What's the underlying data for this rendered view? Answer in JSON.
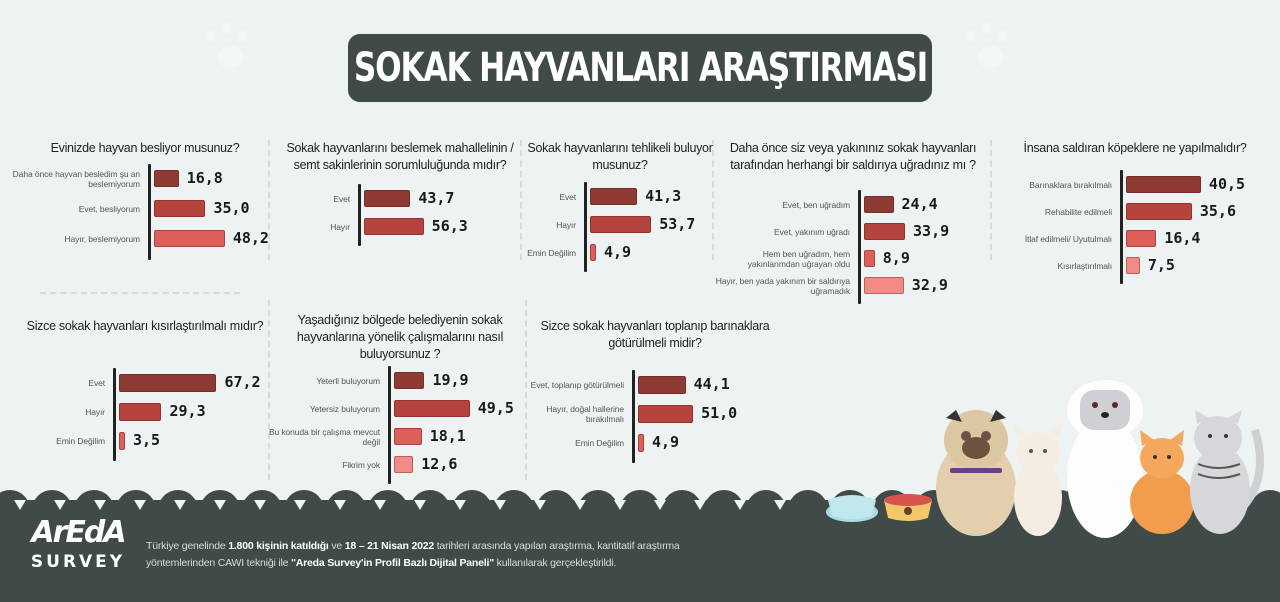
{
  "header": {
    "title": "SOKAK HAYVANLARI ARAŞTIRMASI"
  },
  "colors": {
    "background": "#edf3f2",
    "dark_panel": "#3f4a49",
    "bar_dark": "#8e3b33",
    "bar_mid": "#b5443e",
    "bar_light": "#dc5f5a",
    "bar_lightest": "#f28a86"
  },
  "chart_data": [
    {
      "type": "bar",
      "orientation": "horizontal",
      "title": "Evinizde hayvan besliyor musunuz?",
      "categories": [
        "Daha önce hayvan besledim şu an beslemiyorum",
        "Evet, besliyorum",
        "Hayır, beslemiyorum"
      ],
      "values": [
        16.8,
        35.0,
        48.2
      ],
      "value_labels": [
        "16,8",
        "35,0",
        "48,2"
      ],
      "unit": "%"
    },
    {
      "type": "bar",
      "orientation": "horizontal",
      "title": "Sokak hayvanlarını beslemek mahallelinin / semt sakinlerinin sorumluluğunda mıdır?",
      "categories": [
        "Evet",
        "Hayır"
      ],
      "values": [
        43.7,
        56.3
      ],
      "value_labels": [
        "43,7",
        "56,3"
      ],
      "unit": "%"
    },
    {
      "type": "bar",
      "orientation": "horizontal",
      "title": "Sokak hayvanlarını tehlikeli buluyor musunuz?",
      "categories": [
        "Evet",
        "Hayır",
        "Emin Değilim"
      ],
      "values": [
        41.3,
        53.7,
        4.9
      ],
      "value_labels": [
        "41,3",
        "53,7",
        "4,9"
      ],
      "unit": "%"
    },
    {
      "type": "bar",
      "orientation": "horizontal",
      "title": "Daha önce siz veya yakınınız sokak hayvanları tarafından herhangi bir saldırıya uğradınız mı ?",
      "categories": [
        "Evet, ben uğradım",
        "Evet, yakınım uğradı",
        "Hem ben uğradım, hem yakınlarımdan uğrayan oldu",
        "Hayır, ben yada yakınım bir saldırıya uğramadık"
      ],
      "values": [
        24.4,
        33.9,
        8.9,
        32.9
      ],
      "value_labels": [
        "24,4",
        "33,9",
        "8,9",
        "32,9"
      ],
      "unit": "%"
    },
    {
      "type": "bar",
      "orientation": "horizontal",
      "title": "İnsana saldıran köpeklere ne yapılmalıdır?",
      "categories": [
        "Barınaklara bırakılmalı",
        "Rehabilite edilmeli",
        "İtlaf edilmeli/ Uyutulmalı",
        "Kısırlaştırılmalı"
      ],
      "values": [
        40.5,
        35.6,
        16.4,
        7.5
      ],
      "value_labels": [
        "40,5",
        "35,6",
        "16,4",
        "7,5"
      ],
      "unit": "%"
    },
    {
      "type": "bar",
      "orientation": "horizontal",
      "title": "Sizce sokak hayvanları kısırlaştırılmalı mıdır?",
      "categories": [
        "Evet",
        "Hayır",
        "Emin Değilim"
      ],
      "values": [
        67.2,
        29.3,
        3.5
      ],
      "value_labels": [
        "67,2",
        "29,3",
        "3,5"
      ],
      "unit": "%"
    },
    {
      "type": "bar",
      "orientation": "horizontal",
      "title": "Yaşadığınız bölgede belediyenin sokak hayvanlarına yönelik çalışmalarını nasıl buluyorsunuz ?",
      "categories": [
        "Yeterli buluyorum",
        "Yetersiz buluyorum",
        "Bu konuda bir çalışma mevcut değil",
        "Fikrim yok"
      ],
      "values": [
        19.9,
        49.5,
        18.1,
        12.6
      ],
      "value_labels": [
        "19,9",
        "49,5",
        "18,1",
        "12,6"
      ],
      "unit": "%"
    },
    {
      "type": "bar",
      "orientation": "horizontal",
      "title": "Sizce sokak hayvanları toplanıp barınaklara götürülmeli midir?",
      "categories": [
        "Evet, toplanıp götürülmeli",
        "Hayır, doğal hallerine bırakılmalı",
        "Emin Değilim"
      ],
      "values": [
        44.1,
        51.0,
        4.9
      ],
      "value_labels": [
        "44,1",
        "51,0",
        "4,9"
      ],
      "unit": "%"
    }
  ],
  "footer": {
    "logo_main": "ArEdA",
    "logo_sub": "SURVEY",
    "note_parts": [
      {
        "text": "Türkiye genelinde ",
        "bold": false
      },
      {
        "text": "1.800 kişinin katıldığı",
        "bold": true
      },
      {
        "text": " ve ",
        "bold": false
      },
      {
        "text": "18 – 21 Nisan 2022",
        "bold": true
      },
      {
        "text": " tarihleri arasında yapılan araştırma, kantitatif araştırma yöntemlerinden CAWI tekniği ile ",
        "bold": false
      },
      {
        "text": "\"Areda Survey'in Profil Bazlı Dijital Paneli\"",
        "bold": true
      },
      {
        "text": " kullanılarak gerçekleştirildi.",
        "bold": false
      }
    ]
  }
}
